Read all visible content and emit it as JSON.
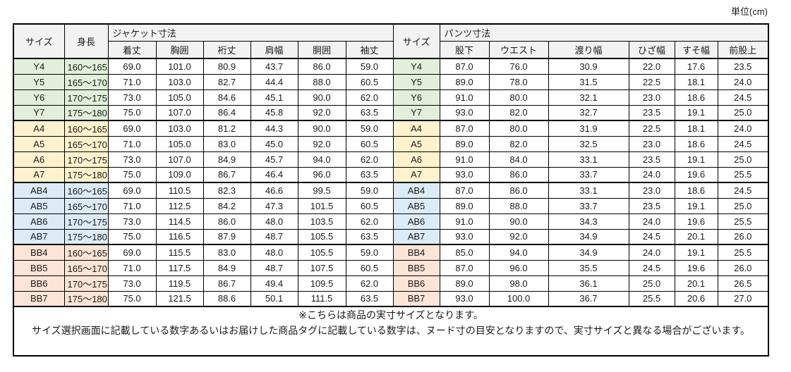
{
  "unit_label": "単位(cm)",
  "colors": {
    "group_y": "#e2efda",
    "group_a": "#fff2cc",
    "group_ab": "#ddebf7",
    "group_bb": "#fce4d6",
    "header_bg": "#f2f2f2",
    "border": "#000000"
  },
  "table": {
    "header": {
      "size": "サイズ",
      "height": "身長",
      "jacket_group": "ジャケット寸法",
      "jacket_cols": [
        "着丈",
        "胸囲",
        "裄丈",
        "肩幅",
        "胴囲",
        "袖丈"
      ],
      "size2": "サイズ",
      "pants_group": "パンツ寸法",
      "pants_cols": [
        "股下",
        "ウエスト",
        "渡り幅",
        "ひざ幅",
        "すそ幅",
        "前股上"
      ]
    },
    "rows": [
      {
        "group": "y",
        "size": "Y4",
        "height": "160～165",
        "jacket": [
          "69.0",
          "101.0",
          "80.9",
          "43.7",
          "86.0",
          "59.0"
        ],
        "pants": [
          "87.0",
          "76.0",
          "30.9",
          "22.0",
          "17.6",
          "23.5"
        ]
      },
      {
        "group": "y",
        "size": "Y5",
        "height": "165～170",
        "jacket": [
          "71.0",
          "103.0",
          "82.7",
          "44.4",
          "88.0",
          "60.5"
        ],
        "pants": [
          "89.0",
          "78.0",
          "31.5",
          "22.5",
          "18.1",
          "24.0"
        ]
      },
      {
        "group": "y",
        "size": "Y6",
        "height": "170～175",
        "jacket": [
          "73.0",
          "105.0",
          "84.6",
          "45.1",
          "90.0",
          "62.0"
        ],
        "pants": [
          "91.0",
          "80.0",
          "32.1",
          "23.0",
          "18.6",
          "24.5"
        ]
      },
      {
        "group": "y",
        "size": "Y7",
        "height": "175～180",
        "jacket": [
          "75.0",
          "107.0",
          "86.4",
          "45.8",
          "92.0",
          "63.5"
        ],
        "pants": [
          "93.0",
          "82.0",
          "32.7",
          "23.5",
          "19.1",
          "25.0"
        ]
      },
      {
        "group": "a",
        "size": "A4",
        "height": "160～165",
        "jacket": [
          "69.0",
          "103.0",
          "81.2",
          "44.3",
          "90.0",
          "59.0"
        ],
        "pants": [
          "87.0",
          "80.0",
          "31.9",
          "22.5",
          "18.1",
          "24.0"
        ]
      },
      {
        "group": "a",
        "size": "A5",
        "height": "165～170",
        "jacket": [
          "71.0",
          "105.0",
          "83.0",
          "45.0",
          "92.0",
          "60.5"
        ],
        "pants": [
          "89.0",
          "82.0",
          "32.5",
          "23.0",
          "18.6",
          "24.5"
        ]
      },
      {
        "group": "a",
        "size": "A6",
        "height": "170～175",
        "jacket": [
          "73.0",
          "107.0",
          "84.9",
          "45.7",
          "94.0",
          "62.0"
        ],
        "pants": [
          "91.0",
          "84.0",
          "33.1",
          "23.5",
          "19.1",
          "25.0"
        ]
      },
      {
        "group": "a",
        "size": "A7",
        "height": "175～180",
        "jacket": [
          "75.0",
          "109.0",
          "86.7",
          "46.4",
          "96.0",
          "63.5"
        ],
        "pants": [
          "93.0",
          "86.0",
          "33.7",
          "24.0",
          "19.6",
          "25.5"
        ]
      },
      {
        "group": "ab",
        "size": "AB4",
        "height": "160～165",
        "jacket": [
          "69.0",
          "110.5",
          "82.3",
          "46.6",
          "99.5",
          "59.0"
        ],
        "pants": [
          "87.0",
          "86.0",
          "33.1",
          "23.0",
          "18.6",
          "24.5"
        ]
      },
      {
        "group": "ab",
        "size": "AB5",
        "height": "165～170",
        "jacket": [
          "71.0",
          "112.5",
          "84.2",
          "47.3",
          "101.5",
          "60.5"
        ],
        "pants": [
          "89.0",
          "88.0",
          "33.7",
          "23.5",
          "19.1",
          "25.0"
        ]
      },
      {
        "group": "ab",
        "size": "AB6",
        "height": "170～175",
        "jacket": [
          "73.0",
          "114.5",
          "86.0",
          "48.0",
          "103.5",
          "62.0"
        ],
        "pants": [
          "91.0",
          "90.0",
          "34.3",
          "24.0",
          "19.6",
          "25.5"
        ]
      },
      {
        "group": "ab",
        "size": "AB7",
        "height": "175～180",
        "jacket": [
          "75.0",
          "116.5",
          "87.9",
          "48.7",
          "105.5",
          "63.5"
        ],
        "pants": [
          "93.0",
          "92.0",
          "34.9",
          "24.5",
          "20.1",
          "26.0"
        ]
      },
      {
        "group": "bb",
        "size": "BB4",
        "height": "160～165",
        "jacket": [
          "69.0",
          "115.5",
          "83.0",
          "48.0",
          "105.5",
          "59.0"
        ],
        "pants": [
          "85.0",
          "94.0",
          "34.9",
          "24.0",
          "19.1",
          "25.5"
        ]
      },
      {
        "group": "bb",
        "size": "BB5",
        "height": "165～170",
        "jacket": [
          "71.0",
          "117.5",
          "84.9",
          "48.7",
          "107.5",
          "60.5"
        ],
        "pants": [
          "87.0",
          "96.0",
          "35.5",
          "24.5",
          "19.6",
          "26.0"
        ]
      },
      {
        "group": "bb",
        "size": "BB6",
        "height": "170～175",
        "jacket": [
          "73.0",
          "119.5",
          "86.7",
          "49.4",
          "109.5",
          "62.0"
        ],
        "pants": [
          "89.0",
          "98.0",
          "36.1",
          "25.0",
          "20.1",
          "26.5"
        ]
      },
      {
        "group": "bb",
        "size": "BB7",
        "height": "175～180",
        "jacket": [
          "75.0",
          "121.5",
          "88.6",
          "50.1",
          "111.5",
          "63.5"
        ],
        "pants": [
          "93.0",
          "100.0",
          "36.7",
          "25.5",
          "20.6",
          "27.0"
        ]
      }
    ]
  },
  "notes": [
    "※こちらは商品の実寸サイズとなります。",
    "サイズ選択画面に記載している数字あるいはお届けした商品タグに記載している数字は、ヌード寸の目安となりますので、実寸サイズと異なる場合がございます。"
  ]
}
